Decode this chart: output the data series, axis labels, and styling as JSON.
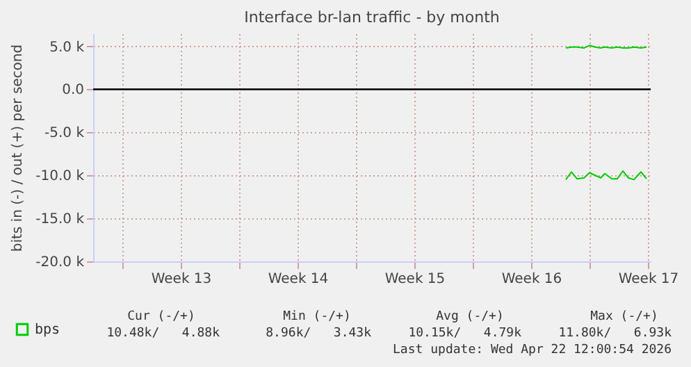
{
  "chart_data": {
    "type": "line",
    "title": "Interface br-lan traffic - by month",
    "ylabel": "bits in (-) / out (+) per second",
    "x": [
      "2026-04-17T14:00",
      "2026-04-17T22:00",
      "2026-04-18T06:00",
      "2026-04-18T16:00",
      "2026-04-19T00:00",
      "2026-04-19T08:00",
      "2026-04-19T16:00",
      "2026-04-19T22:00",
      "2026-04-20T08:00",
      "2026-04-20T16:00",
      "2026-04-21T00:00",
      "2026-04-21T08:00",
      "2026-04-21T16:00",
      "2026-04-22T02:00",
      "2026-04-22T10:00"
    ],
    "xlim": [
      "2026-03-20T06:00",
      "2026-04-22T16:00"
    ],
    "xticks": [
      {
        "value": "2026-03-22T00:00",
        "label": null
      },
      {
        "value": "2026-03-25T12:00",
        "label": "Week 13"
      },
      {
        "value": "2026-03-29T00:00",
        "label": null
      },
      {
        "value": "2026-04-01T12:00",
        "label": "Week 14"
      },
      {
        "value": "2026-04-05T00:00",
        "label": null
      },
      {
        "value": "2026-04-08T12:00",
        "label": "Week 15"
      },
      {
        "value": "2026-04-12T00:00",
        "label": null
      },
      {
        "value": "2026-04-15T12:00",
        "label": "Week 16"
      },
      {
        "value": "2026-04-19T00:00",
        "label": null
      },
      {
        "value": "2026-04-22T12:00",
        "label": "Week 17"
      }
    ],
    "ylim": [
      -20000,
      6500
    ],
    "yticks": [
      {
        "value": -20000,
        "label": "-20.0 k"
      },
      {
        "value": -15000,
        "label": "-15.0 k"
      },
      {
        "value": -10000,
        "label": "-10.0 k"
      },
      {
        "value": -5000,
        "label": "-5.0 k"
      },
      {
        "value": 0,
        "label": "0.0"
      },
      {
        "value": 5000,
        "label": "5.0 k"
      }
    ],
    "series": [
      {
        "name": "bps",
        "color": "#00cc00",
        "values": [
          4800,
          4900,
          4900,
          4800,
          5100,
          4900,
          4800,
          4900,
          4800,
          4900,
          4800,
          4800,
          4900,
          4800,
          4900
        ]
      },
      {
        "color": "#00cc00",
        "values": [
          -10500,
          -9600,
          -10400,
          -10300,
          -9700,
          -10000,
          -10300,
          -9800,
          -10400,
          -10400,
          -9500,
          -10300,
          -10500,
          -9600,
          -10400
        ]
      }
    ],
    "ref_lines": [
      {
        "axis": "y",
        "value": 0,
        "color": "#000000"
      }
    ],
    "grid": true,
    "legend": "bottom left",
    "annotations": [
      "Cur (-/+)",
      "Min (-/+)",
      "Avg (-/+)",
      "Max (-/+)",
      "10.48k/   4.88k",
      "8.96k/   3.43k",
      "10.15k/   4.79k",
      "11.80k/   6.93k",
      "Last update: Wed Apr 22 12:00:54 2026"
    ]
  }
}
